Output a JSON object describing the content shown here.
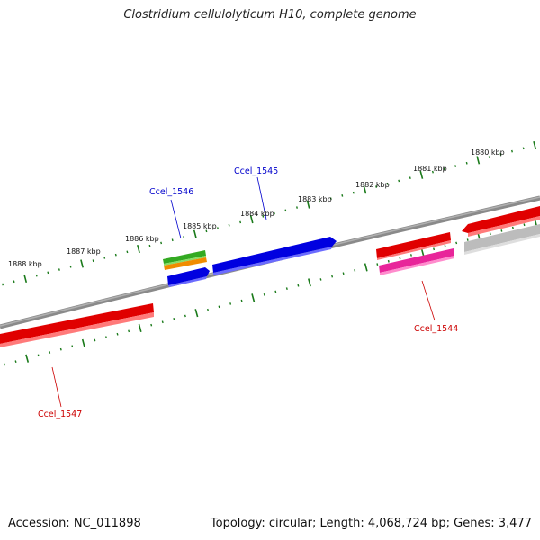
{
  "title": "Clostridium cellulolyticum H10, complete genome",
  "footer": {
    "accession": "Accession: NC_011898",
    "summary": "Topology: circular; Length: 4,068,724 bp; Genes: 3,477"
  },
  "scale_labels": [
    "1888 kbp",
    "1887 kbp",
    "1886 kbp",
    "1885 kbp",
    "1884 kbp",
    "1883 kbp",
    "1882 kbp",
    "1881 kbp",
    "1880 kbp"
  ],
  "gene_labels": [
    {
      "name": "Ccel_1546",
      "color": "#0000cc"
    },
    {
      "name": "Ccel_1545",
      "color": "#0000cc"
    },
    {
      "name": "Ccel_1544",
      "color": "#cc0000"
    },
    {
      "name": "Ccel_1547",
      "color": "#cc0000"
    }
  ],
  "colors": {
    "backbone": "#808080",
    "tick": "#1a7a1a",
    "cds_red": "#e00000",
    "cds_blue": "#0000e0",
    "cds_pink": "#e8259a",
    "cds_grey": "#bcbcbc",
    "rna_green": "#33aa22",
    "rna_orange": "#f08c00"
  }
}
